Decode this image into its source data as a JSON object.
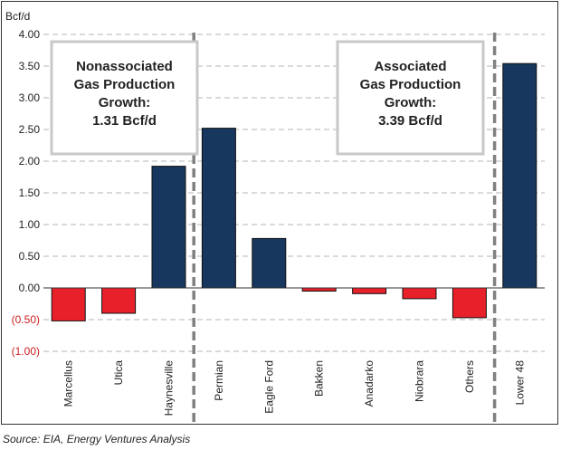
{
  "chart_data": {
    "type": "bar",
    "ylabel": "Bcf/d",
    "ylim": [
      -1.0,
      4.0
    ],
    "yticks": [
      {
        "value": 4.0,
        "label": "4.00"
      },
      {
        "value": 3.5,
        "label": "3.50"
      },
      {
        "value": 3.0,
        "label": "3.00"
      },
      {
        "value": 2.5,
        "label": "2.50"
      },
      {
        "value": 2.0,
        "label": "2.00"
      },
      {
        "value": 1.5,
        "label": "1.50"
      },
      {
        "value": 1.0,
        "label": "1.00"
      },
      {
        "value": 0.5,
        "label": "0.50"
      },
      {
        "value": 0.0,
        "label": "0.00"
      },
      {
        "value": -0.5,
        "label": "(0.50)"
      },
      {
        "value": -1.0,
        "label": "(1.00)"
      }
    ],
    "grid": true,
    "categories": [
      "Marcellus",
      "Utica",
      "Haynesville",
      "Permian",
      "Eagle Ford",
      "Bakken",
      "Anadarko",
      "Niobrara",
      "Others",
      "Lower 48"
    ],
    "values": [
      -0.52,
      -0.4,
      1.92,
      2.52,
      0.78,
      -0.05,
      -0.09,
      -0.17,
      -0.47,
      3.54
    ],
    "positive_color": "#17375e",
    "negative_color": "#e8202a",
    "negative_tick_color": "#cc1f1f",
    "annotations": [
      {
        "lines": [
          "Nonassociated",
          "Gas Production",
          "Growth:",
          "1.31 Bcf/d"
        ]
      },
      {
        "lines": [
          "Associated",
          "Gas Production",
          "Growth:",
          "3.39 Bcf/d"
        ]
      }
    ]
  },
  "source": "Source: EIA, Energy Ventures Analysis"
}
